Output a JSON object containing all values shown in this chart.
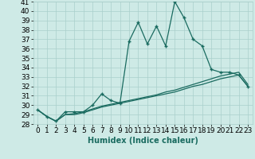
{
  "xlabel": "Humidex (Indice chaleur)",
  "x": [
    0,
    1,
    2,
    3,
    4,
    5,
    6,
    7,
    8,
    9,
    10,
    11,
    12,
    13,
    14,
    15,
    16,
    17,
    18,
    19,
    20,
    21,
    22,
    23
  ],
  "y_main": [
    29.5,
    28.8,
    28.3,
    29.3,
    29.3,
    29.3,
    30.0,
    31.2,
    30.5,
    30.2,
    36.8,
    38.8,
    36.5,
    38.4,
    36.3,
    41.0,
    39.3,
    37.0,
    36.3,
    33.8,
    33.5,
    33.5,
    33.2,
    32.0
  ],
  "y_line2": [
    29.5,
    28.8,
    28.3,
    29.0,
    29.0,
    29.2,
    29.5,
    29.8,
    30.0,
    30.2,
    30.4,
    30.6,
    30.8,
    31.0,
    31.2,
    31.4,
    31.7,
    32.0,
    32.2,
    32.5,
    32.8,
    33.0,
    33.2,
    32.0
  ],
  "y_line3": [
    29.5,
    28.8,
    28.3,
    29.0,
    29.1,
    29.3,
    29.6,
    29.9,
    30.1,
    30.3,
    30.5,
    30.7,
    30.9,
    31.1,
    31.4,
    31.6,
    31.9,
    32.2,
    32.5,
    32.8,
    33.1,
    33.3,
    33.5,
    32.2
  ],
  "ylim": [
    28,
    41
  ],
  "xlim": [
    -0.5,
    23.5
  ],
  "yticks": [
    28,
    29,
    30,
    31,
    32,
    33,
    34,
    35,
    36,
    37,
    38,
    39,
    40,
    41
  ],
  "bg_color": "#ceeae6",
  "grid_color": "#aacfcb",
  "line_color": "#1a6b60",
  "axis_fontsize": 7,
  "tick_fontsize": 6.5
}
